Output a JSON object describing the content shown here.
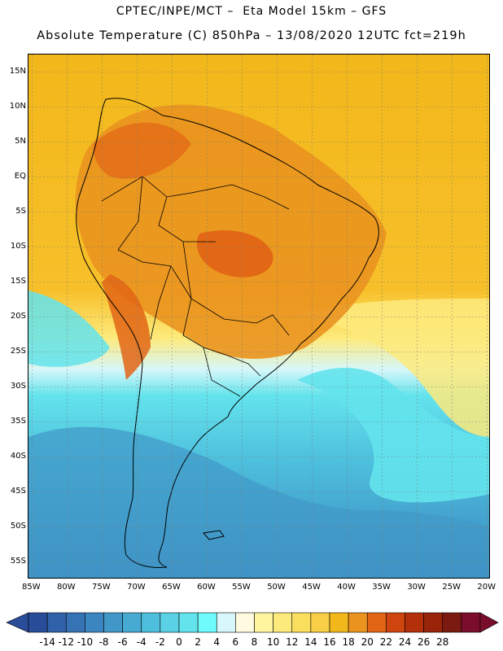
{
  "header": {
    "line1": "CPTEC/INPE/MCT –  Eta Model 15km – GFS",
    "line2": "Absolute Temperature (C) 850hPa – 13/08/2020 12UTC fct=219h"
  },
  "map": {
    "lon_range": [
      -85.5,
      -19.5
    ],
    "lat_range": [
      -57.5,
      17.5
    ],
    "lat_ticks": [
      {
        "value": 15,
        "label": "15N"
      },
      {
        "value": 10,
        "label": "10N"
      },
      {
        "value": 5,
        "label": "5N"
      },
      {
        "value": 0,
        "label": "EQ"
      },
      {
        "value": -5,
        "label": "5S"
      },
      {
        "value": -10,
        "label": "10S"
      },
      {
        "value": -15,
        "label": "15S"
      },
      {
        "value": -20,
        "label": "20S"
      },
      {
        "value": -25,
        "label": "25S"
      },
      {
        "value": -30,
        "label": "30S"
      },
      {
        "value": -35,
        "label": "35S"
      },
      {
        "value": -40,
        "label": "40S"
      },
      {
        "value": -45,
        "label": "45S"
      },
      {
        "value": -50,
        "label": "50S"
      },
      {
        "value": -55,
        "label": "55S"
      }
    ],
    "lon_ticks": [
      {
        "value": -85,
        "label": "85W"
      },
      {
        "value": -80,
        "label": "80W"
      },
      {
        "value": -75,
        "label": "75W"
      },
      {
        "value": -70,
        "label": "70W"
      },
      {
        "value": -65,
        "label": "65W"
      },
      {
        "value": -60,
        "label": "60W"
      },
      {
        "value": -55,
        "label": "55W"
      },
      {
        "value": -50,
        "label": "50W"
      },
      {
        "value": -45,
        "label": "45W"
      },
      {
        "value": -40,
        "label": "40W"
      },
      {
        "value": -35,
        "label": "35W"
      },
      {
        "value": -30,
        "label": "30W"
      },
      {
        "value": -25,
        "label": "25W"
      },
      {
        "value": -20,
        "label": "20W"
      }
    ],
    "gridlines": "dotted every 5 degrees",
    "regions": [
      {
        "name": "warm-northern-band",
        "category_c": "18-20"
      },
      {
        "name": "amazon-basin-warm",
        "category_c": "20-22"
      },
      {
        "name": "central-brazil-hot-core",
        "category_c": "22-24"
      },
      {
        "name": "cold-southern-ocean",
        "category_c": "-8 to 0"
      }
    ]
  },
  "colorbar": {
    "labels": [
      "-14",
      "-12",
      "-10",
      "-8",
      "-6",
      "-4",
      "-2",
      "0",
      "2",
      "4",
      "6",
      "8",
      "10",
      "12",
      "14",
      "16",
      "18",
      "20",
      "22",
      "24",
      "26",
      "28"
    ],
    "colors": [
      "#2a4d9a",
      "#3161a8",
      "#3573b5",
      "#3b86c0",
      "#4198c8",
      "#47aad1",
      "#4dbedc",
      "#5ad1e5",
      "#63e3ec",
      "#6dfbfb",
      "#d7f7fa",
      "#fffbe0",
      "#fff59e",
      "#fdea7c",
      "#fadf5f",
      "#f7ce45",
      "#f2b71a",
      "#ea931f",
      "#e26515",
      "#cf4510",
      "#b3300b",
      "#992409",
      "#7b1a10",
      "#7a0d2b"
    ],
    "under_color": "#2a4d9a",
    "over_color": "#7a0d2b"
  }
}
